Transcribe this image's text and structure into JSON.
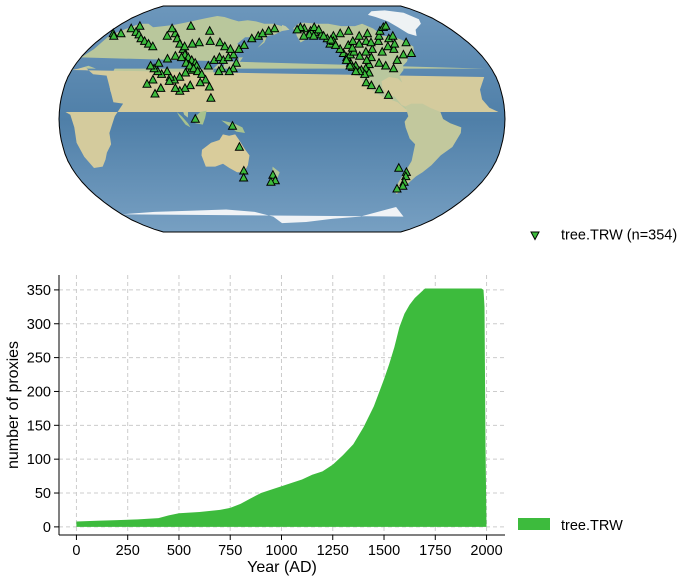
{
  "colors": {
    "ocean_deep": "#4f7fa8",
    "ocean_light": "#8fb5d0",
    "land_green": "#b5c69a",
    "land_dry": "#d9cfa8",
    "ice": "#f2f5f8",
    "marker_fill": "#3dbb3d",
    "marker_edge": "#000000",
    "area_fill": "#3dbb3d",
    "grid": "#cccccc"
  },
  "map": {
    "projection": "robinson",
    "central_longitude": 180,
    "legend_label": "tree.TRW (n=354)",
    "legend_marker": "triangle-up",
    "sites": [
      [
        -70,
        46
      ],
      [
        -78,
        42
      ],
      [
        -84,
        36
      ],
      [
        -90,
        38
      ],
      [
        -95,
        40
      ],
      [
        -100,
        44
      ],
      [
        -104,
        39
      ],
      [
        -108,
        36
      ],
      [
        -112,
        35
      ],
      [
        -116,
        38
      ],
      [
        -120,
        40
      ],
      [
        -124,
        47
      ],
      [
        -122,
        44
      ],
      [
        -118,
        46
      ],
      [
        -114,
        48
      ],
      [
        -110,
        45
      ],
      [
        -106,
        33
      ],
      [
        -110,
        32
      ],
      [
        -114,
        34
      ],
      [
        -119,
        37
      ],
      [
        -121,
        38
      ],
      [
        -123,
        42
      ],
      [
        -117,
        34
      ],
      [
        -105,
        42
      ],
      [
        -103,
        48
      ],
      [
        -96,
        50
      ],
      [
        -88,
        48
      ],
      [
        -80,
        52
      ],
      [
        -74,
        58
      ],
      [
        -68,
        60
      ],
      [
        -60,
        55
      ],
      [
        -62,
        47
      ],
      [
        -76,
        50
      ],
      [
        -72,
        54
      ],
      [
        -86,
        56
      ],
      [
        -92,
        62
      ],
      [
        -102,
        60
      ],
      [
        -110,
        64
      ],
      [
        -120,
        62
      ],
      [
        -128,
        60
      ],
      [
        -135,
        58
      ],
      [
        -140,
        61
      ],
      [
        -146,
        63
      ],
      [
        -150,
        64
      ],
      [
        -152,
        61
      ],
      [
        -156,
        66
      ],
      [
        -160,
        67
      ],
      [
        -164,
        65
      ],
      [
        -158,
        60
      ],
      [
        -145,
        67
      ],
      [
        -134,
        54
      ],
      [
        -130,
        56
      ],
      [
        -126,
        50
      ],
      [
        -129,
        53
      ],
      [
        -132,
        57
      ],
      [
        -138,
        60
      ],
      [
        -141,
        65
      ],
      [
        -148,
        60
      ],
      [
        -117,
        53
      ],
      [
        -114,
        51
      ],
      [
        -111,
        56
      ],
      [
        -106,
        54
      ],
      [
        -98,
        56
      ],
      [
        -94,
        55
      ],
      [
        -82,
        60
      ],
      [
        -77,
        64
      ],
      [
        -70,
        67
      ],
      [
        -66,
        68
      ],
      [
        -110,
        26
      ],
      [
        -106,
        24
      ],
      [
        -100,
        21
      ],
      [
        -93,
        17
      ],
      [
        -80,
        -35
      ],
      [
        -72,
        -38
      ],
      [
        -71,
        -41
      ],
      [
        -70,
        -45
      ],
      [
        -69,
        -48
      ],
      [
        -73,
        -50
      ],
      [
        6,
        62
      ],
      [
        10,
        60
      ],
      [
        14,
        62
      ],
      [
        18,
        66
      ],
      [
        24,
        68
      ],
      [
        28,
        63
      ],
      [
        34,
        61
      ],
      [
        40,
        58
      ],
      [
        46,
        56
      ],
      [
        52,
        54
      ],
      [
        58,
        52
      ],
      [
        64,
        60
      ],
      [
        70,
        62
      ],
      [
        76,
        58
      ],
      [
        82,
        54
      ],
      [
        88,
        50
      ],
      [
        92,
        46
      ],
      [
        96,
        44
      ],
      [
        100,
        42
      ],
      [
        104,
        40
      ],
      [
        106,
        38
      ],
      [
        102,
        35
      ],
      [
        98,
        33
      ],
      [
        94,
        30
      ],
      [
        90,
        28
      ],
      [
        86,
        30
      ],
      [
        82,
        34
      ],
      [
        78,
        32
      ],
      [
        74,
        34
      ],
      [
        70,
        36
      ],
      [
        66,
        38
      ],
      [
        72,
        40
      ],
      [
        78,
        43
      ],
      [
        84,
        45
      ],
      [
        90,
        44
      ],
      [
        96,
        40
      ],
      [
        100,
        38
      ],
      [
        104,
        36
      ],
      [
        108,
        34
      ],
      [
        112,
        32
      ],
      [
        116,
        38
      ],
      [
        120,
        42
      ],
      [
        124,
        44
      ],
      [
        128,
        42
      ],
      [
        132,
        44
      ],
      [
        136,
        46
      ],
      [
        140,
        50
      ],
      [
        144,
        53
      ],
      [
        150,
        58
      ],
      [
        156,
        60
      ],
      [
        160,
        62
      ],
      [
        166,
        64
      ],
      [
        172,
        66
      ],
      [
        140,
        40
      ],
      [
        138,
        36
      ],
      [
        135,
        34
      ],
      [
        128,
        36
      ],
      [
        126,
        34
      ],
      [
        116,
        28
      ],
      [
        112,
        26
      ],
      [
        104,
        24
      ],
      [
        100,
        22
      ],
      [
        96,
        20
      ],
      [
        92,
        22
      ],
      [
        86,
        27
      ],
      [
        80,
        22
      ],
      [
        76,
        18
      ],
      [
        72,
        28
      ],
      [
        68,
        25
      ],
      [
        120,
        23
      ],
      [
        122,
        15
      ],
      [
        110,
        0
      ],
      [
        140,
        -5
      ],
      [
        145,
        -20
      ],
      [
        147,
        -37
      ],
      [
        146,
        -42
      ],
      [
        172,
        -40
      ],
      [
        174,
        -44
      ],
      [
        170,
        -45
      ],
      [
        100,
        55
      ],
      [
        110,
        56
      ],
      [
        120,
        55
      ],
      [
        126,
        52
      ],
      [
        132,
        50
      ],
      [
        88,
        52
      ],
      [
        94,
        54
      ],
      [
        62,
        66
      ],
      [
        80,
        68
      ],
      [
        104,
        64
      ]
    ]
  },
  "chart_data": {
    "type": "area",
    "title": "",
    "xlabel": "Year (AD)",
    "ylabel": "number of proxies",
    "xlim": [
      -85,
      2090
    ],
    "ylim": [
      -12,
      372
    ],
    "xticks": [
      0,
      250,
      500,
      750,
      1000,
      1250,
      1500,
      1750,
      2000
    ],
    "yticks": [
      0,
      50,
      100,
      150,
      200,
      250,
      300,
      350
    ],
    "grid": true,
    "grid_style": "dashed",
    "legend_placement": "outside-lower-right",
    "series": [
      {
        "name": "tree.TRW",
        "x": [
          0,
          100,
          200,
          300,
          400,
          450,
          500,
          600,
          700,
          750,
          800,
          850,
          900,
          950,
          1000,
          1050,
          1100,
          1150,
          1200,
          1250,
          1300,
          1350,
          1400,
          1450,
          1500,
          1525,
          1550,
          1575,
          1600,
          1625,
          1650,
          1675,
          1700,
          1750,
          1800,
          1850,
          1900,
          1950,
          1975,
          1985,
          1990,
          1995,
          2000
        ],
        "values": [
          8,
          9,
          10,
          11,
          13,
          17,
          20,
          22,
          25,
          28,
          34,
          42,
          50,
          55,
          60,
          65,
          70,
          77,
          82,
          92,
          106,
          122,
          147,
          178,
          218,
          240,
          265,
          295,
          315,
          328,
          338,
          345,
          352,
          352,
          352,
          352,
          352,
          352,
          352,
          350,
          325,
          120,
          0
        ]
      }
    ]
  }
}
